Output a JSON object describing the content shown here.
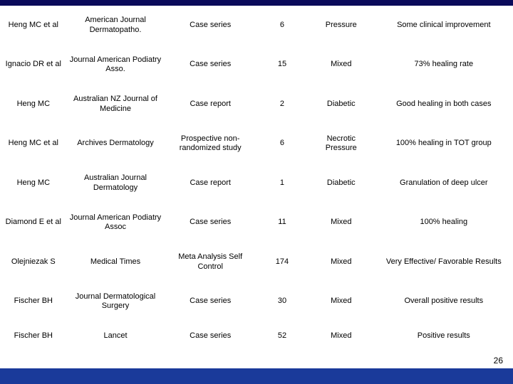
{
  "colors": {
    "top_bar": "#0a0a5a",
    "footer_bar": "#1a3a9a",
    "background": "#ffffff",
    "text": "#000000"
  },
  "typography": {
    "font_family": "Arial, sans-serif",
    "font_size_pt": 8
  },
  "page_number": "26",
  "table": {
    "column_widths_pct": [
      13,
      19,
      18,
      10,
      13,
      27
    ],
    "rows": [
      {
        "author": "Heng MC et al",
        "journal": "American Journal Dermatopatho.",
        "design": "Case series",
        "n": "6",
        "type": "Pressure",
        "outcome": "Some clinical improvement"
      },
      {
        "author": "Ignacio DR et al",
        "journal": "Journal American Podiatry Asso.",
        "design": "Case series",
        "n": "15",
        "type": "Mixed",
        "outcome": "73% healing rate"
      },
      {
        "author": "Heng MC",
        "journal": "Australian NZ Journal of Medicine",
        "design": "Case report",
        "n": "2",
        "type": "Diabetic",
        "outcome": "Good healing in both cases"
      },
      {
        "author": "Heng MC et al",
        "journal": "Archives Dermatology",
        "design": "Prospective non-randomized study",
        "n": "6",
        "type": "Necrotic Pressure",
        "outcome": "100% healing in TOT group"
      },
      {
        "author": "Heng MC",
        "journal": "Australian Journal Dermatology",
        "design": "Case report",
        "n": "1",
        "type": "Diabetic",
        "outcome": "Granulation of deep ulcer"
      },
      {
        "author": "Diamond E et al",
        "journal": "Journal American Podiatry Assoc",
        "design": "Case series",
        "n": "11",
        "type": "Mixed",
        "outcome": "100% healing"
      },
      {
        "author": "Olejniezak S",
        "journal": "Medical Times",
        "design": "Meta Analysis Self Control",
        "n": "174",
        "type": "Mixed",
        "outcome": "Very Effective/ Favorable Results"
      },
      {
        "author": "Fischer BH",
        "journal": "Journal Dermatological Surgery",
        "design": "Case series",
        "n": "30",
        "type": "Mixed",
        "outcome": "Overall positive results"
      },
      {
        "author": "Fischer BH",
        "journal": "Lancet",
        "design": "Case series",
        "n": "52",
        "type": "Mixed",
        "outcome": "Positive results"
      }
    ]
  }
}
